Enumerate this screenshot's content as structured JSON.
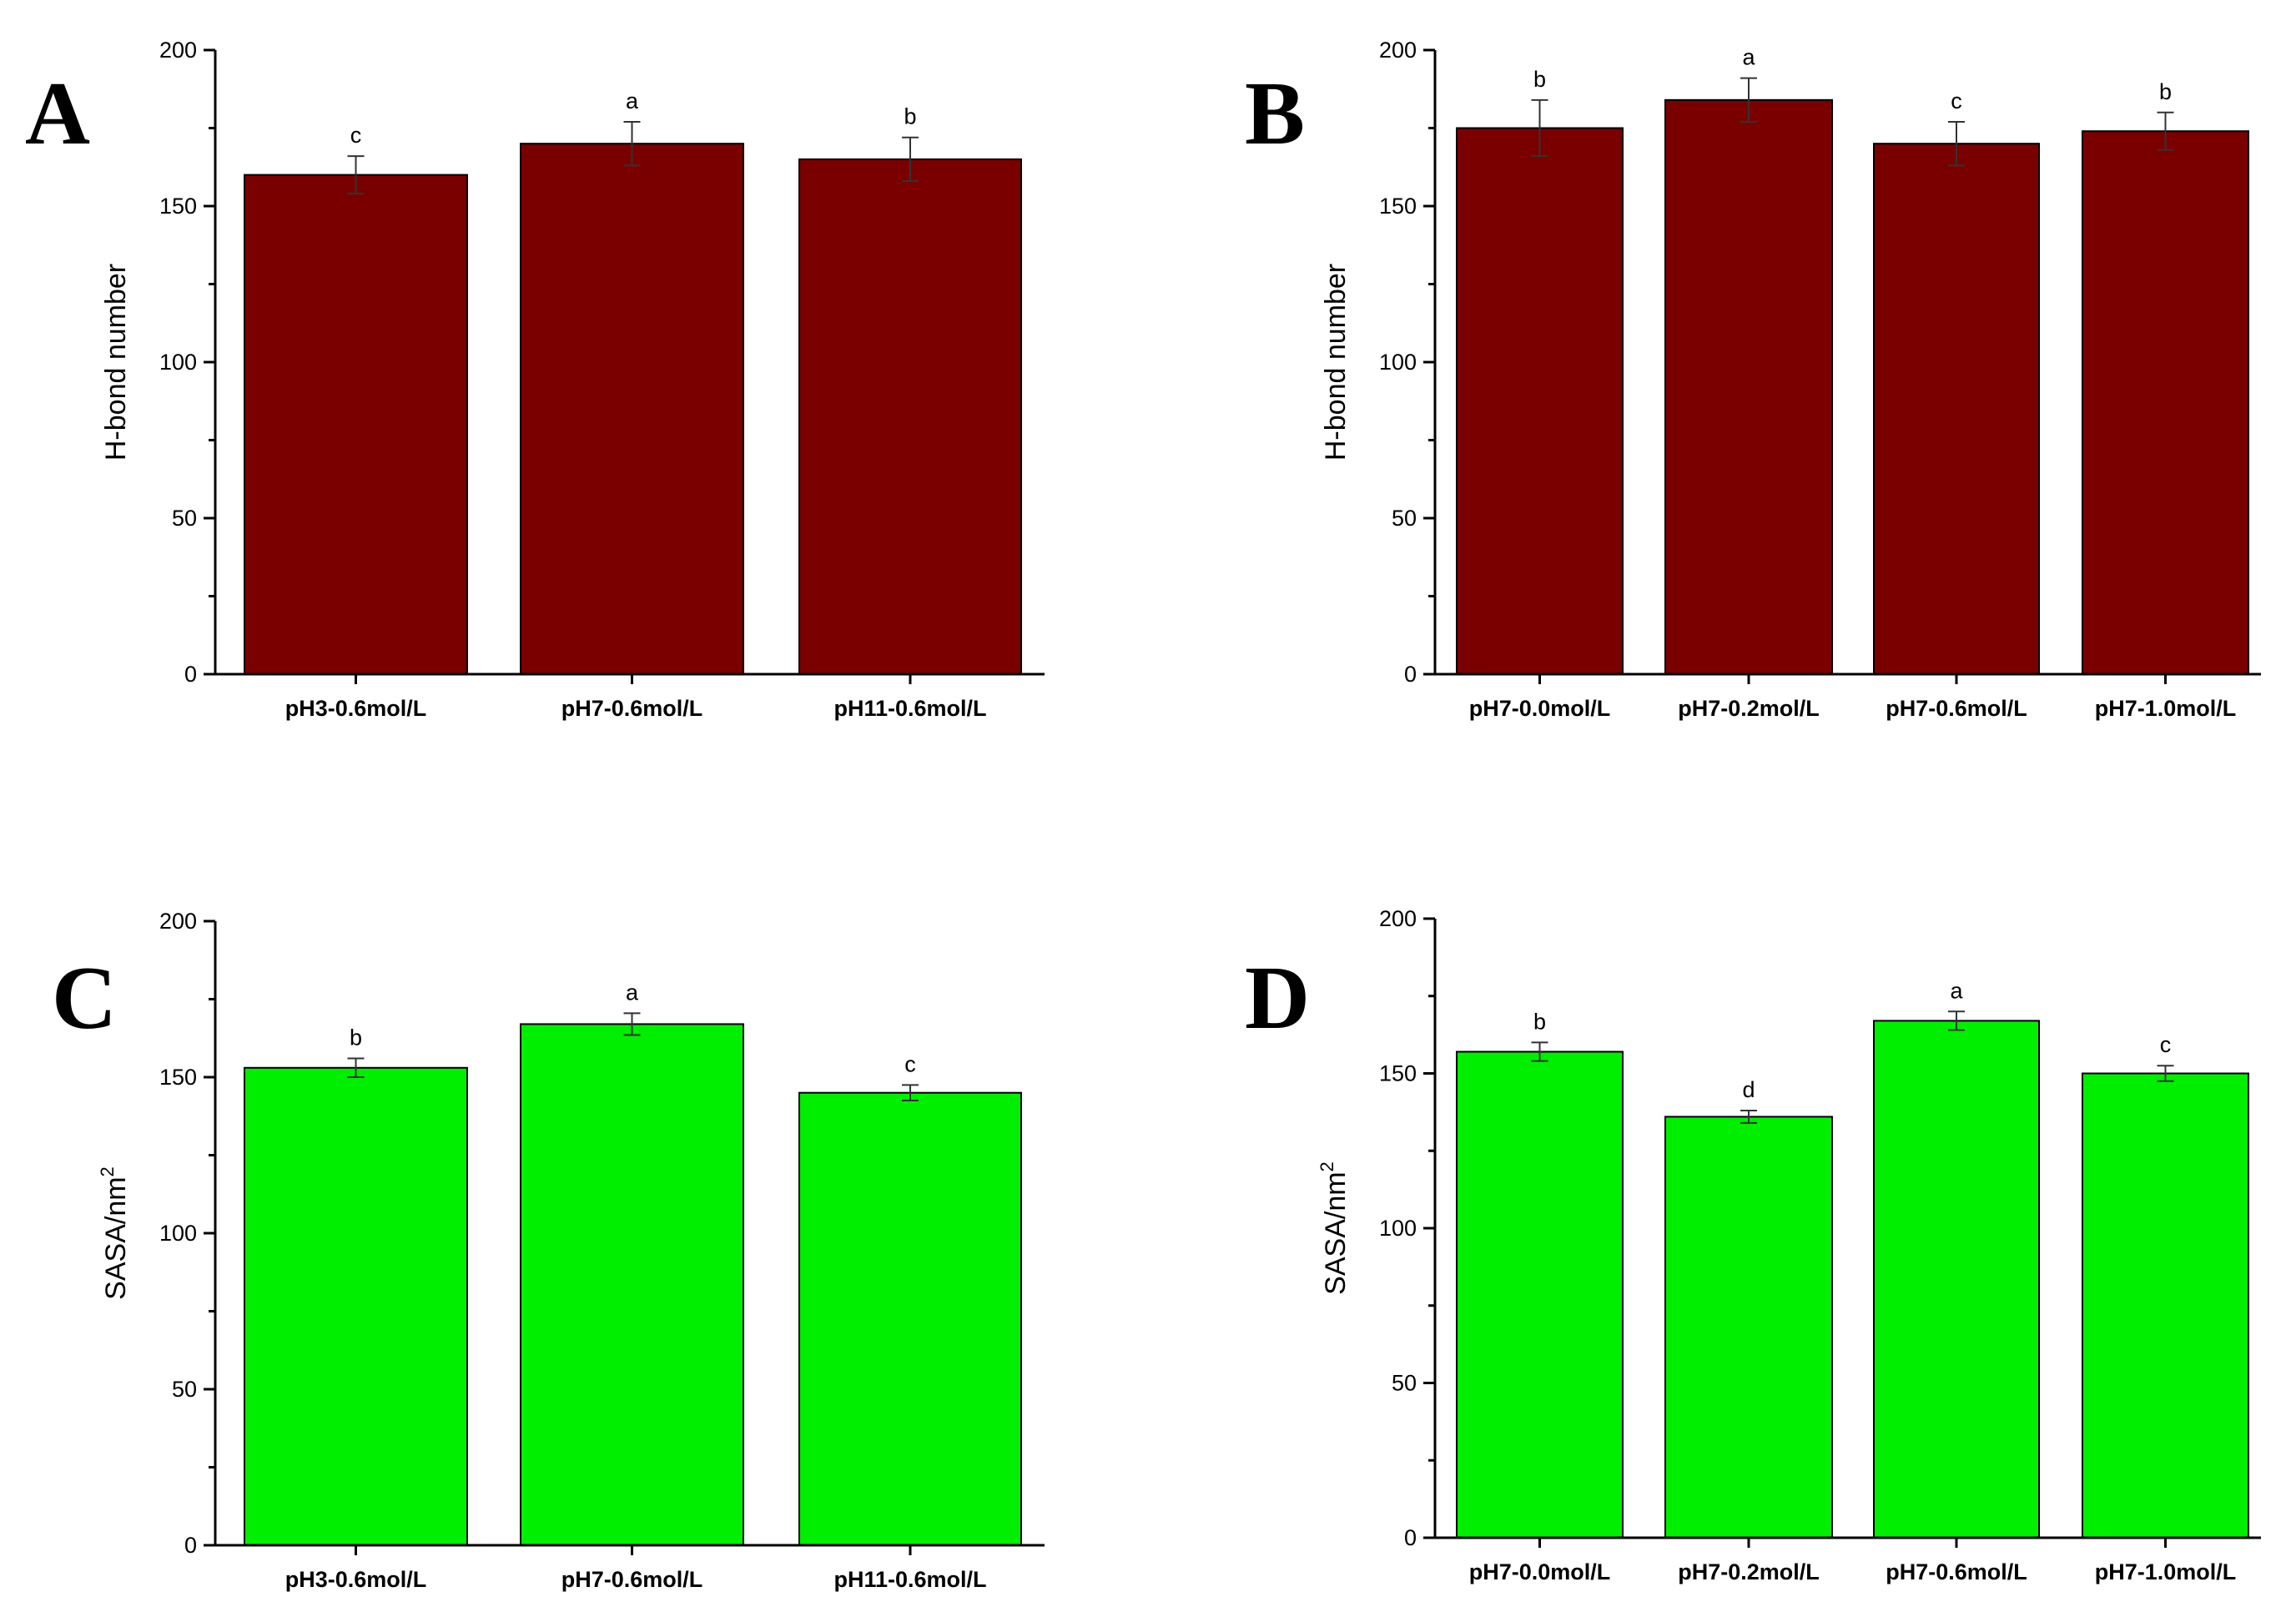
{
  "chart_data": [
    {
      "panel": "A",
      "type": "bar",
      "ylabel": "H-bond number",
      "ylabel_superscript": "",
      "ylim": [
        0,
        200
      ],
      "yticks": [
        0,
        50,
        100,
        150,
        200
      ],
      "categories": [
        "pH3-0.6mol/L",
        "pH7-0.6mol/L",
        "pH11-0.6mol/L"
      ],
      "values": [
        160,
        170,
        165
      ],
      "errors": [
        6,
        7,
        7
      ],
      "significance": [
        "c",
        "a",
        "b"
      ],
      "color": "#7a0000"
    },
    {
      "panel": "B",
      "type": "bar",
      "ylabel": "H-bond number",
      "ylabel_superscript": "",
      "ylim": [
        0,
        200
      ],
      "yticks": [
        0,
        50,
        100,
        150,
        200
      ],
      "categories": [
        "pH7-0.0mol/L",
        "pH7-0.2mol/L",
        "pH7-0.6mol/L",
        "pH7-1.0mol/L"
      ],
      "values": [
        175,
        184,
        170,
        174
      ],
      "errors": [
        9,
        7,
        7,
        6
      ],
      "significance": [
        "b",
        "a",
        "c",
        "b"
      ],
      "color": "#7a0000"
    },
    {
      "panel": "C",
      "type": "bar",
      "ylabel": "SASA/nm",
      "ylabel_superscript": "2",
      "ylim": [
        0,
        200
      ],
      "yticks": [
        0,
        50,
        100,
        150,
        200
      ],
      "categories": [
        "pH3-0.6mol/L",
        "pH7-0.6mol/L",
        "pH11-0.6mol/L"
      ],
      "values": [
        153,
        167,
        145
      ],
      "errors": [
        3,
        3.5,
        2.5
      ],
      "significance": [
        "b",
        "a",
        "c"
      ],
      "color": "#00ee00"
    },
    {
      "panel": "D",
      "type": "bar",
      "ylabel": "SASA/nm",
      "ylabel_superscript": "2",
      "ylim": [
        0,
        200
      ],
      "yticks": [
        0,
        50,
        100,
        150,
        200
      ],
      "categories": [
        "pH7-0.0mol/L",
        "pH7-0.2mol/L",
        "pH7-0.6mol/L",
        "pH7-1.0mol/L"
      ],
      "values": [
        157,
        136,
        167,
        150
      ],
      "errors": [
        3,
        2,
        3,
        2.5
      ],
      "significance": [
        "b",
        "d",
        "a",
        "c"
      ],
      "color": "#00ee00"
    }
  ]
}
